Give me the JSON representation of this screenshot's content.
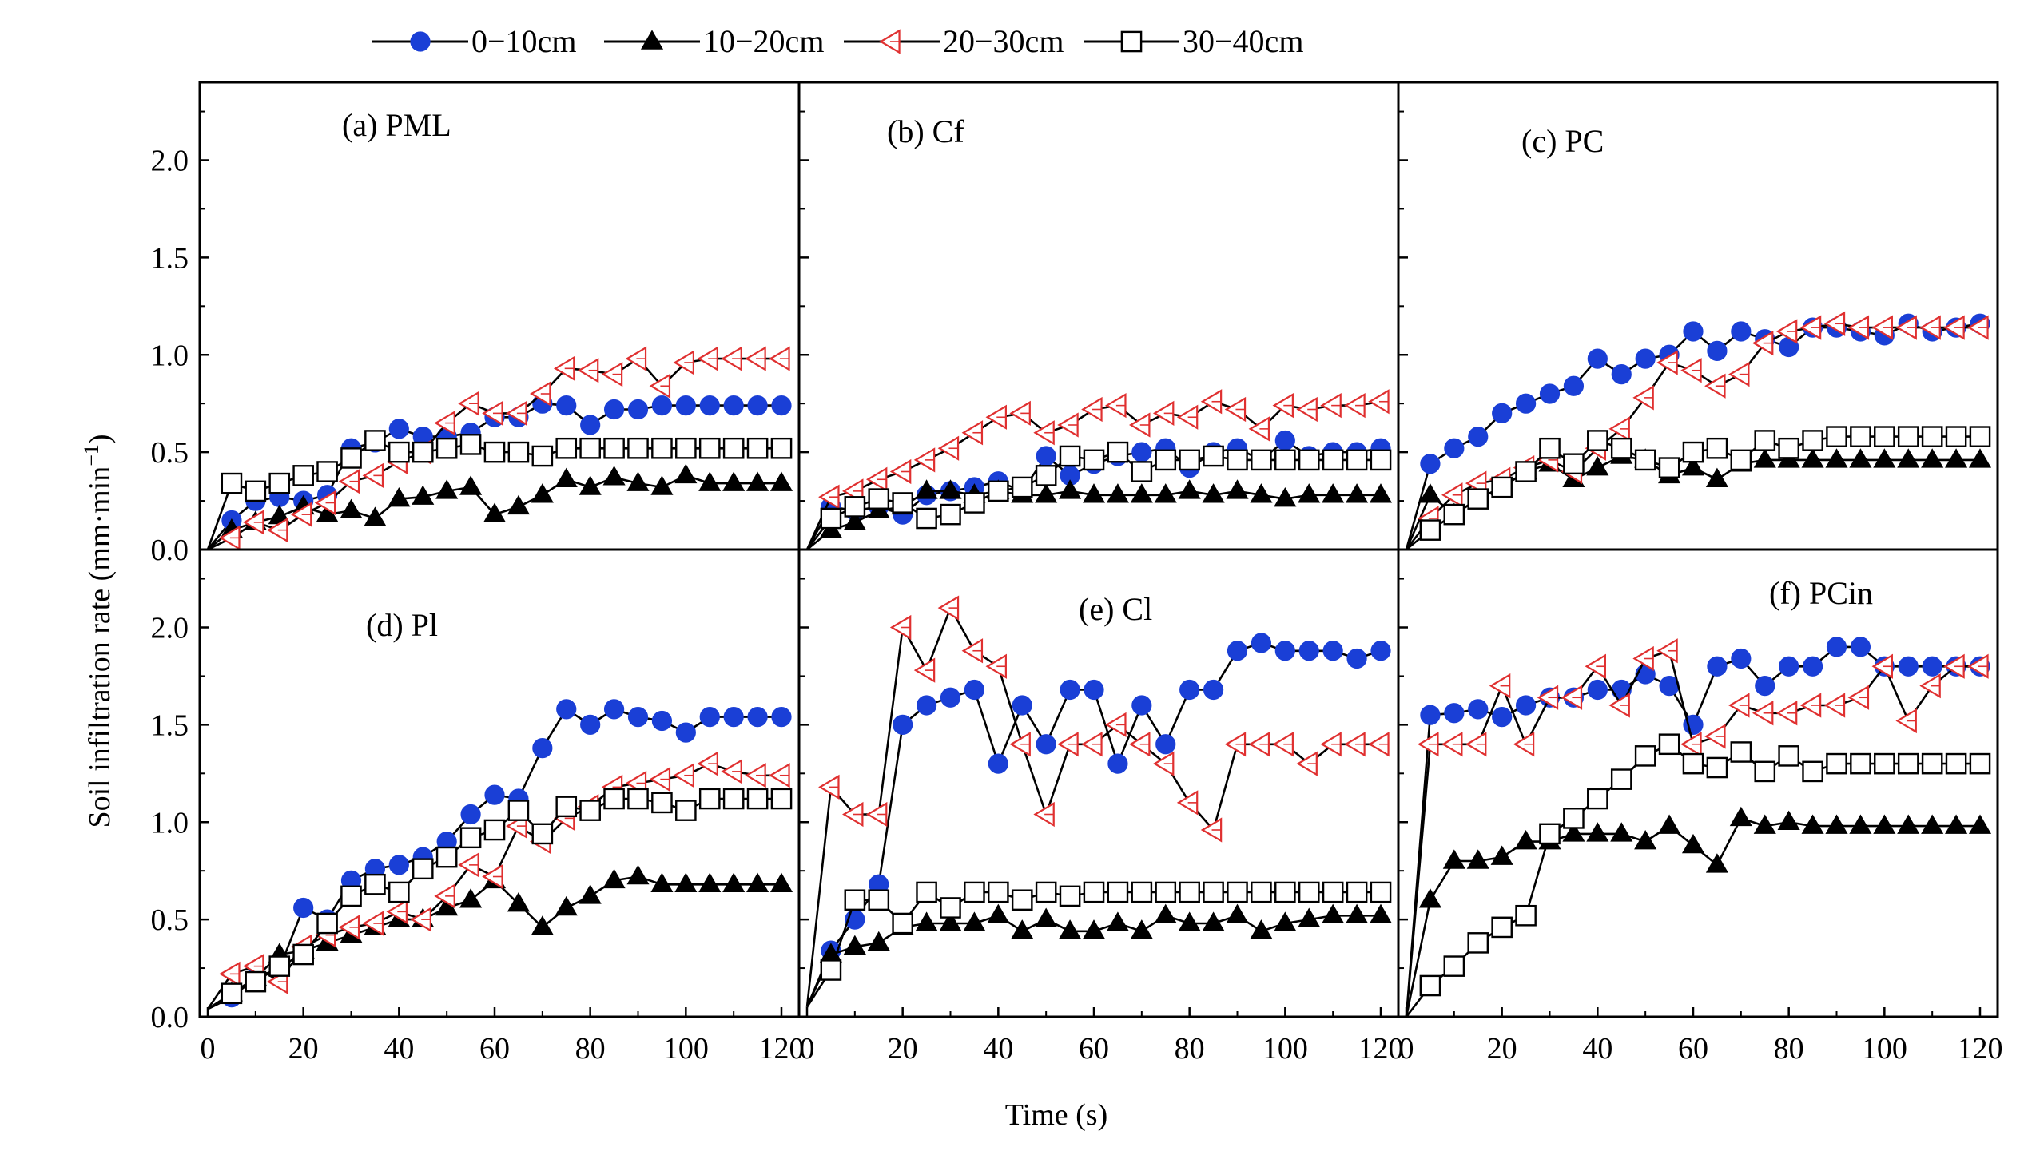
{
  "chart_data": {
    "type": "line",
    "layout": "2x3 panel grid",
    "xlabel": "Time (s)",
    "ylabel": "Soil infiltration rate (mm·min⁻¹)",
    "ylabel_base": "Soil infiltration rate (mm·min",
    "ylabel_sup": "−1",
    "ylabel_end": ")",
    "xlim": [
      0,
      120
    ],
    "ylim": [
      0,
      2.4
    ],
    "xticks": [
      "0",
      "20",
      "40",
      "60",
      "80",
      "100",
      "120"
    ],
    "yticks": [
      "0.0",
      "0.5",
      "1.0",
      "1.5",
      "2.0"
    ],
    "legend_position": "top-center",
    "series_meta": [
      {
        "name": "0−10cm",
        "marker": "filled-circle",
        "color": "#1a3fd6"
      },
      {
        "name": "10−20cm",
        "marker": "filled-triangle",
        "color": "#000000"
      },
      {
        "name": "20−30cm",
        "marker": "open-left-triangle",
        "color": "#e03030"
      },
      {
        "name": "30−40cm",
        "marker": "open-square",
        "color": "#000000"
      }
    ],
    "x": [
      0,
      5,
      10,
      15,
      20,
      25,
      30,
      35,
      40,
      45,
      50,
      55,
      60,
      65,
      70,
      75,
      80,
      85,
      90,
      95,
      100,
      105,
      110,
      115,
      120
    ],
    "panels": [
      {
        "label": "(a) PML",
        "series": [
          {
            "name": "0−10cm",
            "values": [
              0,
              0.15,
              0.25,
              0.27,
              0.25,
              0.28,
              0.52,
              0.55,
              0.62,
              0.58,
              0.58,
              0.6,
              0.68,
              0.68,
              0.75,
              0.74,
              0.64,
              0.72,
              0.72,
              0.74,
              0.74,
              0.74,
              0.74,
              0.74,
              0.74
            ]
          },
          {
            "name": "10−20cm",
            "values": [
              0,
              0.1,
              0.14,
              0.17,
              0.22,
              0.18,
              0.2,
              0.16,
              0.26,
              0.27,
              0.3,
              0.32,
              0.18,
              0.22,
              0.28,
              0.36,
              0.32,
              0.37,
              0.34,
              0.32,
              0.38,
              0.34,
              0.34,
              0.34,
              0.34
            ]
          },
          {
            "name": "20−30cm",
            "values": [
              0,
              0.06,
              0.14,
              0.1,
              0.18,
              0.24,
              0.35,
              0.38,
              0.45,
              0.5,
              0.65,
              0.75,
              0.7,
              0.7,
              0.8,
              0.93,
              0.92,
              0.9,
              0.98,
              0.84,
              0.96,
              0.98,
              0.98,
              0.98,
              0.98
            ]
          },
          {
            "name": "30−40cm",
            "values": [
              0,
              0.34,
              0.3,
              0.34,
              0.38,
              0.4,
              0.47,
              0.56,
              0.5,
              0.5,
              0.52,
              0.54,
              0.5,
              0.5,
              0.48,
              0.52,
              0.52,
              0.52,
              0.52,
              0.52,
              0.52,
              0.52,
              0.52,
              0.52,
              0.52
            ]
          }
        ]
      },
      {
        "label": "(b) Cf",
        "series": [
          {
            "name": "0−10cm",
            "values": [
              0,
              0.22,
              0.2,
              0.22,
              0.18,
              0.28,
              0.3,
              0.32,
              0.35,
              0.3,
              0.48,
              0.38,
              0.44,
              0.48,
              0.5,
              0.52,
              0.42,
              0.5,
              0.52,
              0.46,
              0.56,
              0.48,
              0.5,
              0.5,
              0.52
            ]
          },
          {
            "name": "10−20cm",
            "values": [
              0,
              0.1,
              0.14,
              0.2,
              0.22,
              0.3,
              0.3,
              0.28,
              0.3,
              0.28,
              0.28,
              0.3,
              0.28,
              0.28,
              0.28,
              0.28,
              0.3,
              0.28,
              0.3,
              0.28,
              0.26,
              0.28,
              0.28,
              0.28,
              0.28
            ]
          },
          {
            "name": "20−30cm",
            "values": [
              0,
              0.27,
              0.3,
              0.36,
              0.4,
              0.46,
              0.52,
              0.6,
              0.68,
              0.7,
              0.6,
              0.64,
              0.72,
              0.74,
              0.64,
              0.7,
              0.68,
              0.76,
              0.72,
              0.62,
              0.74,
              0.72,
              0.74,
              0.74,
              0.76
            ]
          },
          {
            "name": "30−40cm",
            "values": [
              0,
              0.16,
              0.22,
              0.26,
              0.24,
              0.16,
              0.18,
              0.24,
              0.3,
              0.32,
              0.38,
              0.48,
              0.46,
              0.5,
              0.4,
              0.46,
              0.46,
              0.48,
              0.46,
              0.46,
              0.46,
              0.46,
              0.46,
              0.46,
              0.46
            ]
          }
        ]
      },
      {
        "label": "(c) PC",
        "series": [
          {
            "name": "0−10cm",
            "values": [
              0,
              0.44,
              0.52,
              0.58,
              0.7,
              0.75,
              0.8,
              0.84,
              0.98,
              0.9,
              0.98,
              1.0,
              1.12,
              1.02,
              1.12,
              1.08,
              1.04,
              1.14,
              1.14,
              1.12,
              1.1,
              1.16,
              1.12,
              1.14,
              1.16
            ]
          },
          {
            "name": "10−20cm",
            "values": [
              0,
              0.28,
              0.18,
              0.26,
              0.32,
              0.4,
              0.44,
              0.36,
              0.42,
              0.48,
              0.46,
              0.38,
              0.42,
              0.36,
              0.44,
              0.46,
              0.46,
              0.46,
              0.46,
              0.46,
              0.46,
              0.46,
              0.46,
              0.46,
              0.46
            ]
          },
          {
            "name": "20−30cm",
            "values": [
              0,
              0.16,
              0.28,
              0.34,
              0.36,
              0.42,
              0.46,
              0.4,
              0.52,
              0.62,
              0.78,
              0.96,
              0.92,
              0.84,
              0.9,
              1.06,
              1.12,
              1.14,
              1.16,
              1.14,
              1.14,
              1.14,
              1.14,
              1.14,
              1.14
            ]
          },
          {
            "name": "30−40cm",
            "values": [
              0,
              0.1,
              0.18,
              0.26,
              0.32,
              0.4,
              0.52,
              0.44,
              0.56,
              0.52,
              0.46,
              0.42,
              0.5,
              0.52,
              0.46,
              0.56,
              0.52,
              0.56,
              0.58,
              0.58,
              0.58,
              0.58,
              0.58,
              0.58,
              0.58
            ]
          }
        ]
      },
      {
        "label": "(d) Pl",
        "series": [
          {
            "name": "0−10cm",
            "values": [
              0.04,
              0.1,
              0.2,
              0.25,
              0.56,
              0.5,
              0.7,
              0.76,
              0.78,
              0.82,
              0.9,
              1.04,
              1.14,
              1.12,
              1.38,
              1.58,
              1.5,
              1.58,
              1.54,
              1.52,
              1.46,
              1.54,
              1.54,
              1.54,
              1.54
            ]
          },
          {
            "name": "10−20cm",
            "values": [
              0.04,
              0.12,
              0.2,
              0.32,
              0.34,
              0.38,
              0.42,
              0.46,
              0.5,
              0.5,
              0.56,
              0.6,
              0.7,
              0.58,
              0.46,
              0.56,
              0.62,
              0.7,
              0.72,
              0.68,
              0.68,
              0.68,
              0.68,
              0.68,
              0.68
            ]
          },
          {
            "name": "20−30cm",
            "values": [
              0.04,
              0.22,
              0.26,
              0.18,
              0.36,
              0.42,
              0.46,
              0.48,
              0.54,
              0.5,
              0.62,
              0.78,
              0.72,
              0.98,
              0.9,
              1.02,
              1.08,
              1.18,
              1.2,
              1.22,
              1.24,
              1.3,
              1.26,
              1.24,
              1.24
            ]
          },
          {
            "name": "30−40cm",
            "values": [
              0.04,
              0.12,
              0.18,
              0.26,
              0.32,
              0.48,
              0.62,
              0.68,
              0.64,
              0.76,
              0.82,
              0.92,
              0.96,
              1.06,
              0.94,
              1.08,
              1.06,
              1.12,
              1.12,
              1.1,
              1.06,
              1.12,
              1.12,
              1.12,
              1.12
            ]
          }
        ]
      },
      {
        "label": "(e) Cl",
        "series": [
          {
            "name": "0−10cm",
            "values": [
              0.05,
              0.34,
              0.5,
              0.68,
              1.5,
              1.6,
              1.64,
              1.68,
              1.3,
              1.6,
              1.4,
              1.68,
              1.68,
              1.3,
              1.6,
              1.4,
              1.68,
              1.68,
              1.88,
              1.92,
              1.88,
              1.88,
              1.88,
              1.84,
              1.88
            ]
          },
          {
            "name": "10−20cm",
            "values": [
              0.05,
              0.32,
              0.36,
              0.38,
              0.46,
              0.48,
              0.48,
              0.48,
              0.52,
              0.44,
              0.5,
              0.44,
              0.44,
              0.48,
              0.44,
              0.52,
              0.48,
              0.48,
              0.52,
              0.44,
              0.48,
              0.5,
              0.52,
              0.52,
              0.52
            ]
          },
          {
            "name": "20−30cm",
            "values": [
              0.05,
              1.18,
              1.04,
              1.04,
              2.0,
              1.78,
              2.1,
              1.88,
              1.8,
              1.4,
              1.04,
              1.4,
              1.4,
              1.5,
              1.4,
              1.3,
              1.1,
              0.96,
              1.4,
              1.4,
              1.4,
              1.3,
              1.4,
              1.4,
              1.4
            ]
          },
          {
            "name": "30−40cm",
            "values": [
              0.05,
              0.24,
              0.6,
              0.6,
              0.48,
              0.64,
              0.56,
              0.64,
              0.64,
              0.6,
              0.64,
              0.62,
              0.64,
              0.64,
              0.64,
              0.64,
              0.64,
              0.64,
              0.64,
              0.64,
              0.64,
              0.64,
              0.64,
              0.64,
              0.64
            ]
          }
        ]
      },
      {
        "label": "(f) PCin",
        "series": [
          {
            "name": "0−10cm",
            "values": [
              0,
              1.55,
              1.56,
              1.58,
              1.54,
              1.6,
              1.64,
              1.64,
              1.68,
              1.68,
              1.76,
              1.7,
              1.5,
              1.8,
              1.84,
              1.7,
              1.8,
              1.8,
              1.9,
              1.9,
              1.8,
              1.8,
              1.8,
              1.8,
              1.8
            ]
          },
          {
            "name": "10−20cm",
            "values": [
              0,
              0.6,
              0.8,
              0.8,
              0.82,
              0.9,
              0.9,
              0.94,
              0.94,
              0.94,
              0.9,
              0.98,
              0.88,
              0.78,
              1.02,
              0.98,
              1.0,
              0.98,
              0.98,
              0.98,
              0.98,
              0.98,
              0.98,
              0.98,
              0.98
            ]
          },
          {
            "name": "20−30cm",
            "values": [
              0,
              1.4,
              1.4,
              1.4,
              1.7,
              1.4,
              1.64,
              1.64,
              1.8,
              1.6,
              1.84,
              1.88,
              1.4,
              1.44,
              1.6,
              1.56,
              1.56,
              1.6,
              1.6,
              1.64,
              1.8,
              1.52,
              1.7,
              1.8,
              1.8
            ]
          },
          {
            "name": "30−40cm",
            "values": [
              0,
              0.16,
              0.26,
              0.38,
              0.46,
              0.52,
              0.94,
              1.02,
              1.12,
              1.22,
              1.34,
              1.4,
              1.3,
              1.28,
              1.36,
              1.26,
              1.34,
              1.26,
              1.3,
              1.3,
              1.3,
              1.3,
              1.3,
              1.3,
              1.3
            ]
          }
        ]
      }
    ]
  }
}
